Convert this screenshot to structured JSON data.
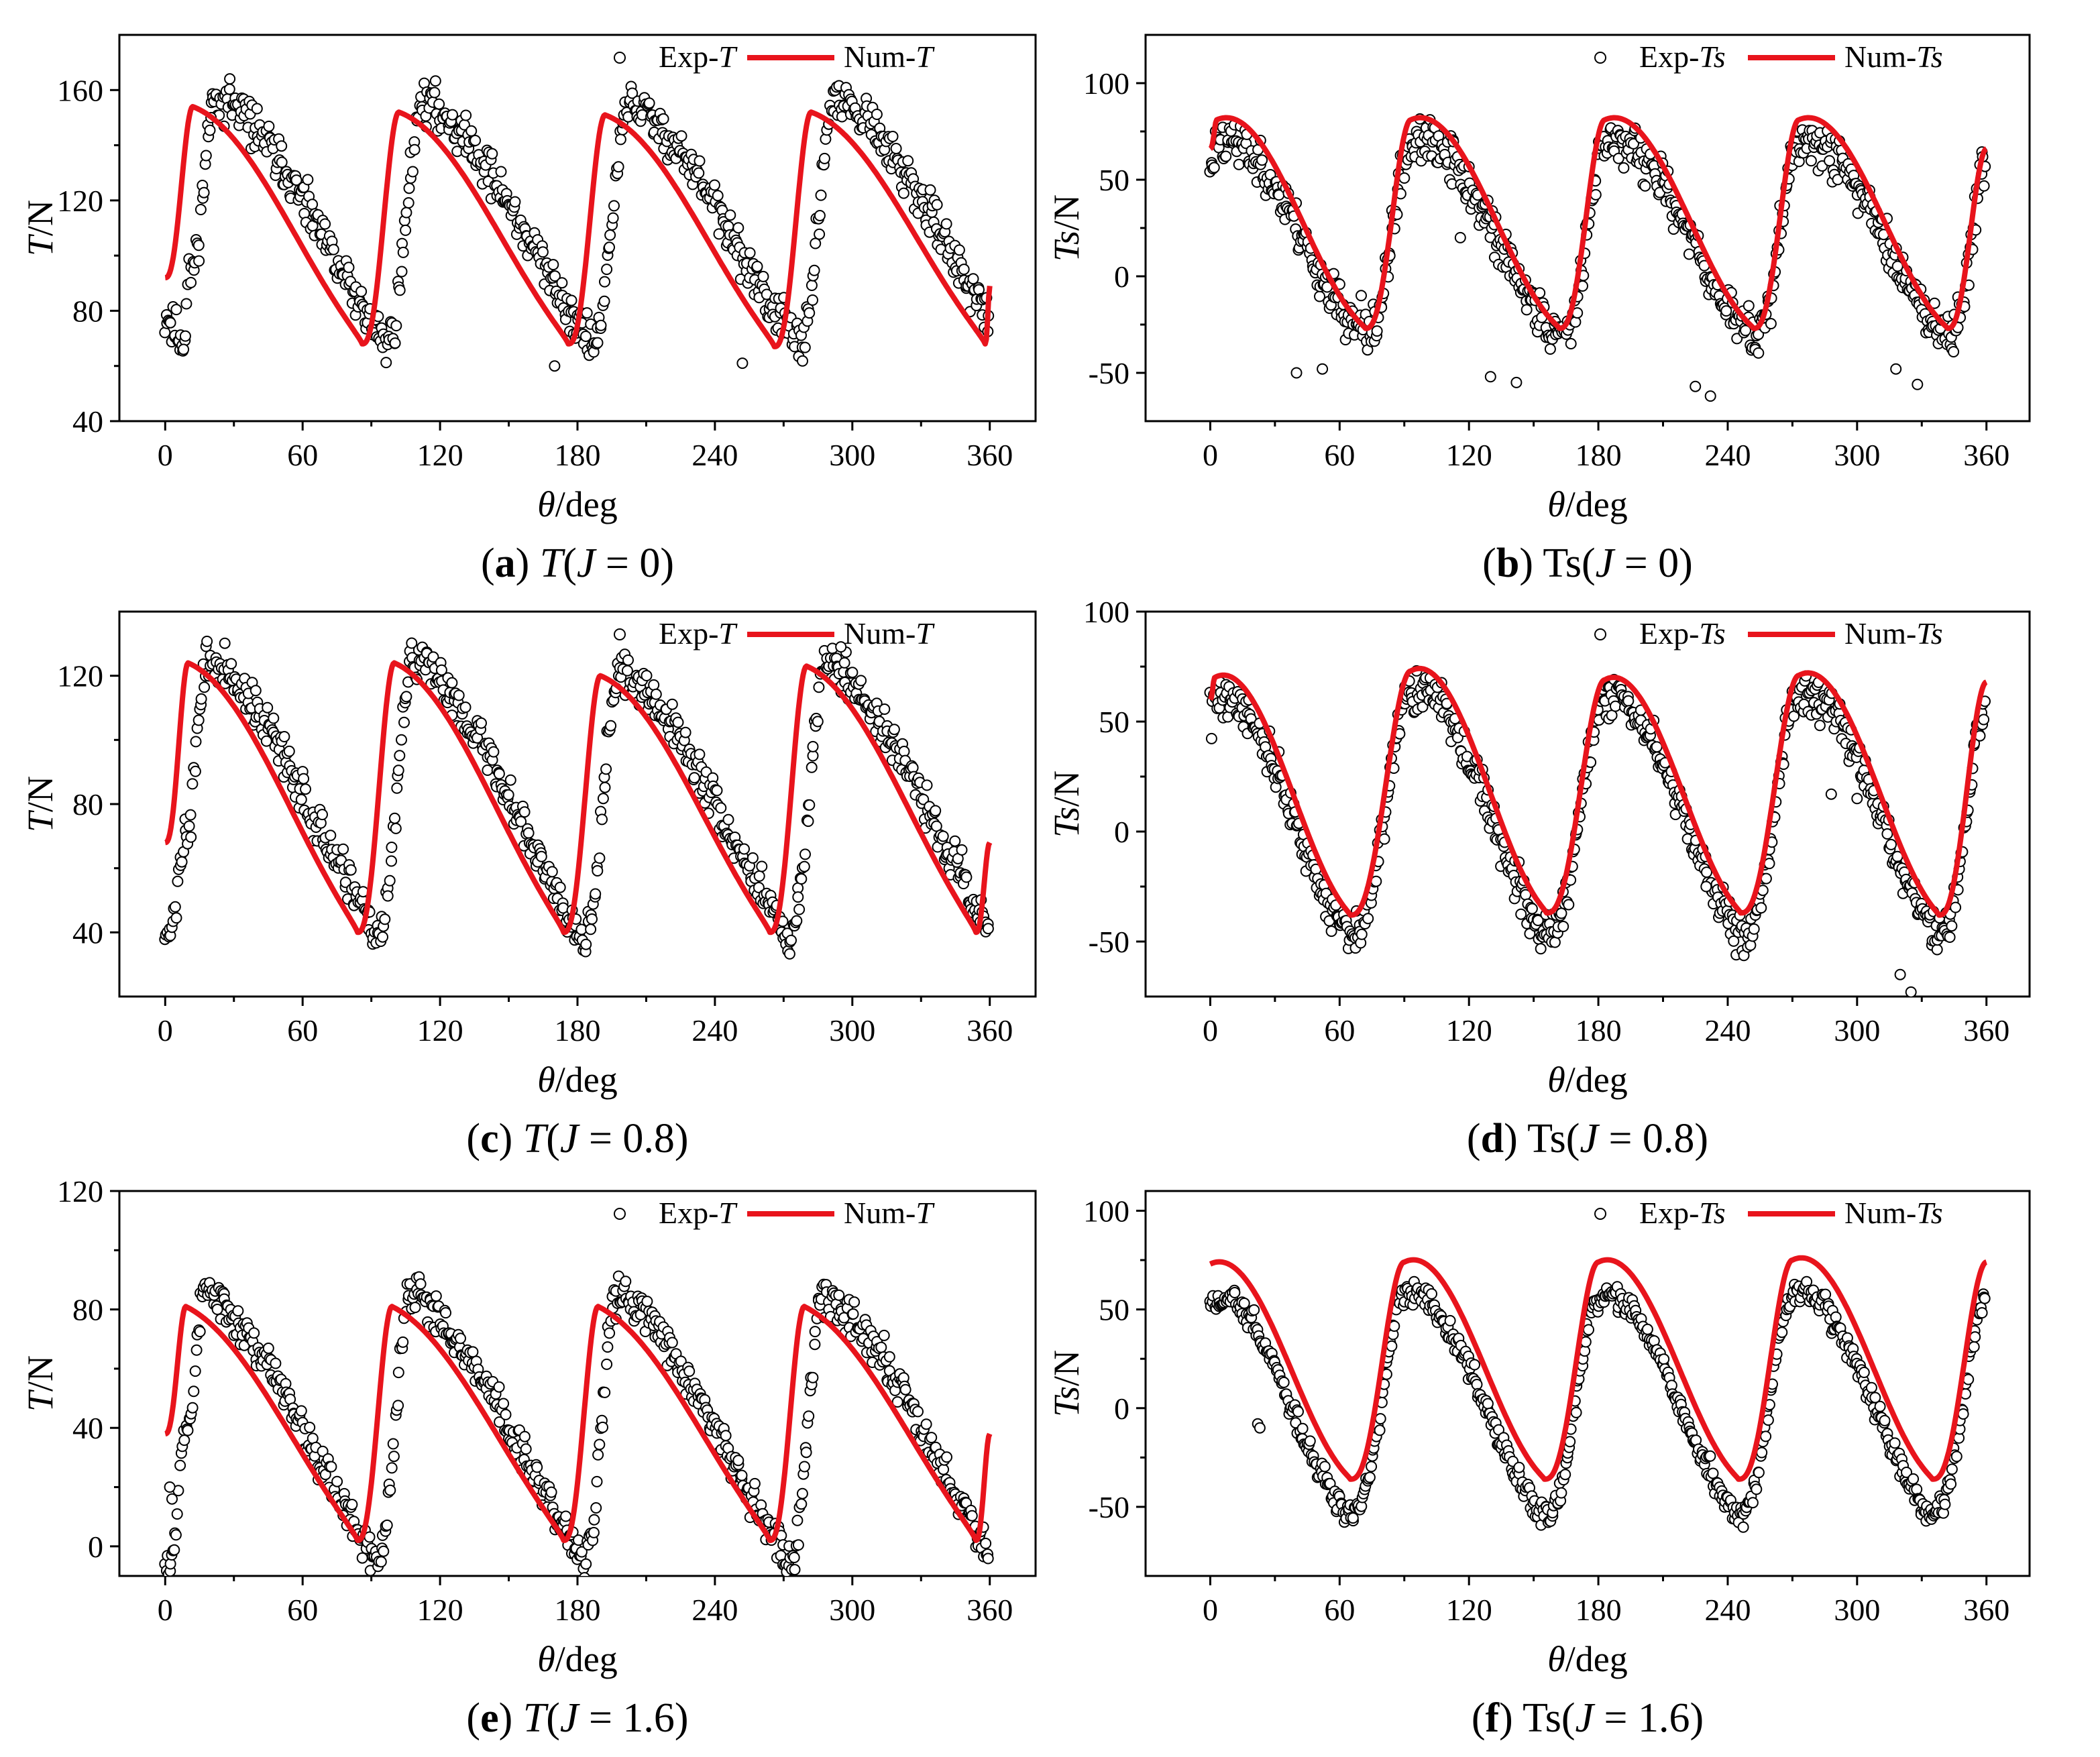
{
  "figure": {
    "colors": {
      "numeric": "#e8141c",
      "experiment": "#000000",
      "background": "#ffffff"
    },
    "legend_position": "top-right"
  },
  "chart_data": [
    {
      "id": "a",
      "type": "scatter+line",
      "title": "",
      "caption": {
        "letter": "(a)",
        "name": "T",
        "var": "J",
        "value": " = 0)"
      },
      "xlabel": {
        "symbol": "θ",
        "unit": "/deg"
      },
      "ylabel": {
        "symbol": "T",
        "unit": "/N"
      },
      "xlim": [
        -20,
        380
      ],
      "ylim": [
        40,
        180
      ],
      "xticks": [
        0,
        60,
        120,
        180,
        240,
        300,
        360
      ],
      "yticks": [
        40,
        80,
        120,
        160
      ],
      "legend": [
        {
          "label_main": "Exp-",
          "label_var": "T",
          "style": "circle"
        },
        {
          "label_main": "Num-",
          "label_var": "T",
          "style": "line"
        }
      ],
      "num": {
        "peaks": [
          [
            12,
            154
          ],
          [
            102,
            152
          ],
          [
            192,
            151
          ],
          [
            282,
            152
          ]
        ],
        "valleys": [
          [
            0,
            92
          ],
          [
            86,
            68
          ],
          [
            176,
            68
          ],
          [
            266,
            67
          ],
          [
            358,
            68
          ]
        ],
        "end": [
          360,
          89
        ],
        "shoulder": 0.3
      },
      "exp": {
        "phase": 10,
        "amp": 1.05,
        "offset": 2,
        "noise": 6,
        "outliers": [
          [
            8,
            66
          ],
          [
            170,
            60
          ],
          [
            252,
            61
          ],
          [
            20,
            150
          ]
        ],
        "seed": 11
      }
    },
    {
      "id": "b",
      "type": "scatter+line",
      "title": "",
      "caption": {
        "letter": "(b)",
        "name": "Ts",
        "var": "J",
        "value": " = 0)"
      },
      "xlabel": {
        "symbol": "θ",
        "unit": "/deg"
      },
      "ylabel": {
        "symbol": "Ts",
        "unit": "/N"
      },
      "xlim": [
        -30,
        380
      ],
      "ylim": [
        -75,
        125
      ],
      "xticks": [
        0,
        60,
        120,
        180,
        240,
        300,
        360
      ],
      "yticks": [
        -50,
        0,
        50,
        100
      ],
      "legend": [
        {
          "label_main": "Exp-",
          "label_var": "Ts",
          "style": "circle"
        },
        {
          "label_main": "Num-",
          "label_var": "Ts",
          "style": "line"
        }
      ],
      "num": {
        "peaks": [
          [
            3,
            81
          ],
          [
            93,
            81
          ],
          [
            183,
            81
          ],
          [
            273,
            81
          ]
        ],
        "valleys": [
          [
            0,
            66
          ],
          [
            72,
            -27
          ],
          [
            162,
            -27
          ],
          [
            252,
            -27
          ],
          [
            342,
            -27
          ]
        ],
        "end": [
          360,
          66
        ],
        "shoulder": 0.6
      },
      "exp": {
        "phase": 0,
        "amp": 0.92,
        "offset": -8,
        "noise": 9,
        "outliers": [
          [
            40,
            -50
          ],
          [
            52,
            -48
          ],
          [
            130,
            -52
          ],
          [
            142,
            -55
          ],
          [
            225,
            -57
          ],
          [
            232,
            -62
          ],
          [
            318,
            -48
          ],
          [
            328,
            -56
          ],
          [
            116,
            20
          ],
          [
            70,
            -10
          ]
        ],
        "seed": 23
      }
    },
    {
      "id": "c",
      "type": "scatter+line",
      "title": "",
      "caption": {
        "letter": "(c)",
        "name": "T",
        "var": "J",
        "value": " = 0.8)"
      },
      "xlabel": {
        "symbol": "θ",
        "unit": "/deg"
      },
      "ylabel": {
        "symbol": "T",
        "unit": "/N"
      },
      "xlim": [
        -20,
        380
      ],
      "ylim": [
        20,
        140
      ],
      "xticks": [
        0,
        60,
        120,
        180,
        240,
        300,
        360
      ],
      "yticks": [
        40,
        80,
        120
      ],
      "legend": [
        {
          "label_main": "Exp-",
          "label_var": "T",
          "style": "circle"
        },
        {
          "label_main": "Num-",
          "label_var": "T",
          "style": "line"
        }
      ],
      "num": {
        "peaks": [
          [
            10,
            124
          ],
          [
            100,
            124
          ],
          [
            190,
            120
          ],
          [
            280,
            123
          ]
        ],
        "valleys": [
          [
            0,
            68
          ],
          [
            84,
            40
          ],
          [
            174,
            40
          ],
          [
            264,
            40
          ],
          [
            354,
            40
          ]
        ],
        "end": [
          360,
          68
        ],
        "shoulder": 0.3
      },
      "exp": {
        "phase": 8,
        "amp": 1.02,
        "offset": 0,
        "noise": 5,
        "outliers": [
          [
            52,
            101
          ],
          [
            295,
            129
          ]
        ],
        "seed": 37
      }
    },
    {
      "id": "d",
      "type": "scatter+line",
      "title": "",
      "caption": {
        "letter": "(d)",
        "name": "Ts",
        "var": "J",
        "value": " = 0.8)"
      },
      "xlabel": {
        "symbol": "θ",
        "unit": "/deg"
      },
      "ylabel": {
        "symbol": "Ts",
        "unit": "/N"
      },
      "xlim": [
        -30,
        380
      ],
      "ylim": [
        -75,
        100
      ],
      "xticks": [
        0,
        60,
        120,
        180,
        240,
        300,
        360
      ],
      "yticks": [
        -50,
        0,
        50,
        100
      ],
      "legend": [
        {
          "label_main": "Exp-",
          "label_var": "Ts",
          "style": "circle"
        },
        {
          "label_main": "Num-",
          "label_var": "Ts",
          "style": "line"
        }
      ],
      "num": {
        "peaks": [
          [
            2,
            70
          ],
          [
            93,
            73
          ],
          [
            183,
            69
          ],
          [
            273,
            71
          ]
        ],
        "valleys": [
          [
            0,
            60
          ],
          [
            65,
            -38
          ],
          [
            156,
            -37
          ],
          [
            246,
            -37
          ],
          [
            338,
            -38
          ]
        ],
        "end": [
          360,
          68
        ],
        "shoulder": 0.6
      },
      "exp": {
        "phase": 0,
        "amp": 1.0,
        "offset": -10,
        "noise": 7,
        "outliers": [
          [
            320,
            -65
          ],
          [
            325,
            -73
          ],
          [
            300,
            15
          ],
          [
            288,
            17
          ],
          [
            230,
            -25
          ]
        ],
        "seed": 41
      }
    },
    {
      "id": "e",
      "type": "scatter+line",
      "title": "",
      "caption": {
        "letter": "(e)",
        "name": "T",
        "var": "J",
        "value": " = 1.6)"
      },
      "xlabel": {
        "symbol": "θ",
        "unit": "/deg"
      },
      "ylabel": {
        "symbol": "T",
        "unit": "/N"
      },
      "xlim": [
        -20,
        380
      ],
      "ylim": [
        -10,
        120
      ],
      "xticks": [
        0,
        60,
        120,
        180,
        240,
        300,
        360
      ],
      "yticks": [
        0,
        40,
        80,
        120
      ],
      "legend": [
        {
          "label_main": "Exp-",
          "label_var": "T",
          "style": "circle"
        },
        {
          "label_main": "Num-",
          "label_var": "T",
          "style": "line"
        }
      ],
      "num": {
        "peaks": [
          [
            9,
            81
          ],
          [
            99,
            81
          ],
          [
            189,
            81
          ],
          [
            279,
            81
          ]
        ],
        "valleys": [
          [
            0,
            38
          ],
          [
            84,
            2
          ],
          [
            174,
            2
          ],
          [
            264,
            2
          ],
          [
            354,
            2
          ]
        ],
        "end": [
          360,
          38
        ],
        "shoulder": 0.25
      },
      "exp": {
        "phase": 8,
        "amp": 1.15,
        "offset": 1,
        "noise": 5,
        "outliers": [
          [
            2,
            20
          ],
          [
            3,
            16
          ]
        ],
        "seed": 53
      }
    },
    {
      "id": "f",
      "type": "scatter+line",
      "title": "",
      "caption": {
        "letter": "(f)",
        "name": "Ts",
        "var": "J",
        "value": " = 1.6)"
      },
      "xlabel": {
        "symbol": "θ",
        "unit": "/deg"
      },
      "ylabel": {
        "symbol": "Ts",
        "unit": "/N"
      },
      "xlim": [
        -30,
        380
      ],
      "ylim": [
        -85,
        110
      ],
      "xticks": [
        0,
        60,
        120,
        180,
        240,
        300,
        360
      ],
      "yticks": [
        -50,
        0,
        50,
        100
      ],
      "legend": [
        {
          "label_main": "Exp-",
          "label_var": "Ts",
          "style": "circle"
        },
        {
          "label_main": "Num-",
          "label_var": "Ts",
          "style": "line"
        }
      ],
      "num": {
        "peaks": [
          [
            0,
            73
          ],
          [
            90,
            74
          ],
          [
            180,
            74
          ],
          [
            270,
            75
          ]
        ],
        "valleys": [
          [
            0,
            73
          ],
          [
            65,
            -36
          ],
          [
            155,
            -36
          ],
          [
            245,
            -36
          ],
          [
            335,
            -36
          ]
        ],
        "end": [
          360,
          74
        ],
        "shoulder": 0.6
      },
      "exp": {
        "phase": 0,
        "amp": 1.0,
        "offset": -18,
        "noise": 5,
        "outliers": [
          [
            22,
            -8
          ],
          [
            23,
            -10
          ]
        ],
        "seed": 67
      }
    }
  ]
}
